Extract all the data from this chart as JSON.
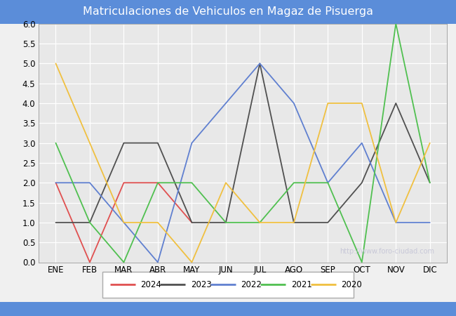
{
  "title": "Matriculaciones de Vehiculos en Magaz de Pisuerga",
  "title_color": "#ffffff",
  "title_bg_color": "#5b8dd9",
  "months": [
    "ENE",
    "FEB",
    "MAR",
    "ABR",
    "MAY",
    "JUN",
    "JUL",
    "AGO",
    "SEP",
    "OCT",
    "NOV",
    "DIC"
  ],
  "series": {
    "2024": {
      "color": "#e05050",
      "data": [
        2,
        0,
        2,
        2,
        1,
        null,
        null,
        null,
        null,
        null,
        null,
        null
      ]
    },
    "2023": {
      "color": "#505050",
      "data": [
        1,
        1,
        3,
        3,
        1,
        1,
        5,
        1,
        1,
        2,
        4,
        2
      ]
    },
    "2022": {
      "color": "#6080d0",
      "data": [
        2,
        2,
        1,
        0,
        3,
        4,
        5,
        4,
        2,
        3,
        1,
        1
      ]
    },
    "2021": {
      "color": "#50c050",
      "data": [
        3,
        1,
        0,
        2,
        2,
        1,
        1,
        2,
        2,
        0,
        6,
        2
      ]
    },
    "2020": {
      "color": "#f0c040",
      "data": [
        5,
        3,
        1,
        1,
        0,
        2,
        1,
        1,
        4,
        4,
        1,
        3
      ]
    }
  },
  "ylim": [
    0,
    6.0
  ],
  "yticks": [
    0.0,
    0.5,
    1.0,
    1.5,
    2.0,
    2.5,
    3.0,
    3.5,
    4.0,
    4.5,
    5.0,
    5.5,
    6.0
  ],
  "plot_bg_color": "#e8e8e8",
  "outer_bg_color": "#f0f0f0",
  "grid_color": "#ffffff",
  "watermark": "http://www.foro-ciudad.com",
  "watermark_color": "#c8c8d8",
  "footer_bg_color": "#5b8dd9",
  "series_order": [
    "2024",
    "2023",
    "2022",
    "2021",
    "2020"
  ]
}
